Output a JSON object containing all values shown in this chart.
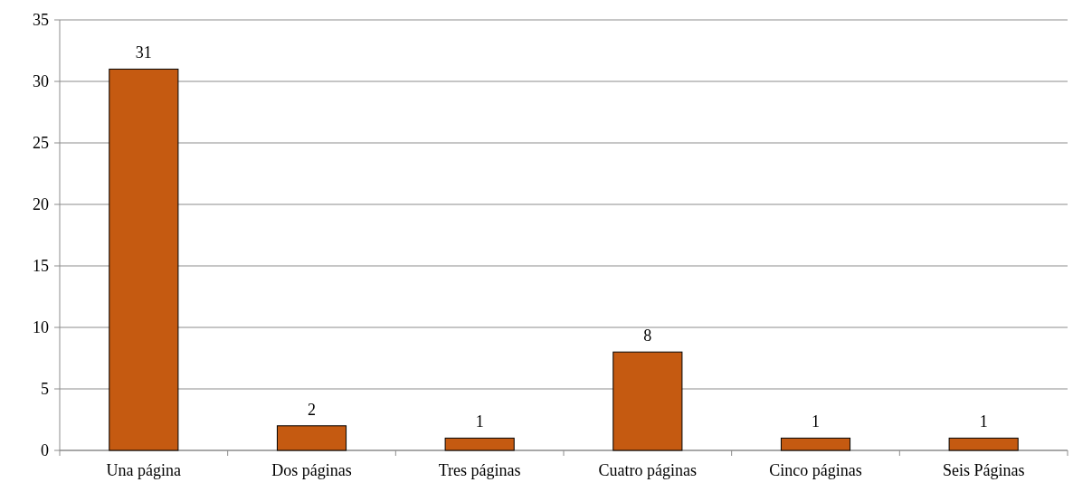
{
  "chart_data": {
    "type": "bar",
    "categories": [
      "Una página",
      "Dos páginas",
      "Tres páginas",
      "Cuatro páginas",
      "Cinco páginas",
      "Seis Páginas"
    ],
    "values": [
      31,
      2,
      1,
      8,
      1,
      1
    ],
    "color": "#c55a11",
    "ylim": [
      0,
      35
    ],
    "yticks": [
      0,
      5,
      10,
      15,
      20,
      25,
      30,
      35
    ],
    "grid": "y",
    "data_labels": true
  }
}
